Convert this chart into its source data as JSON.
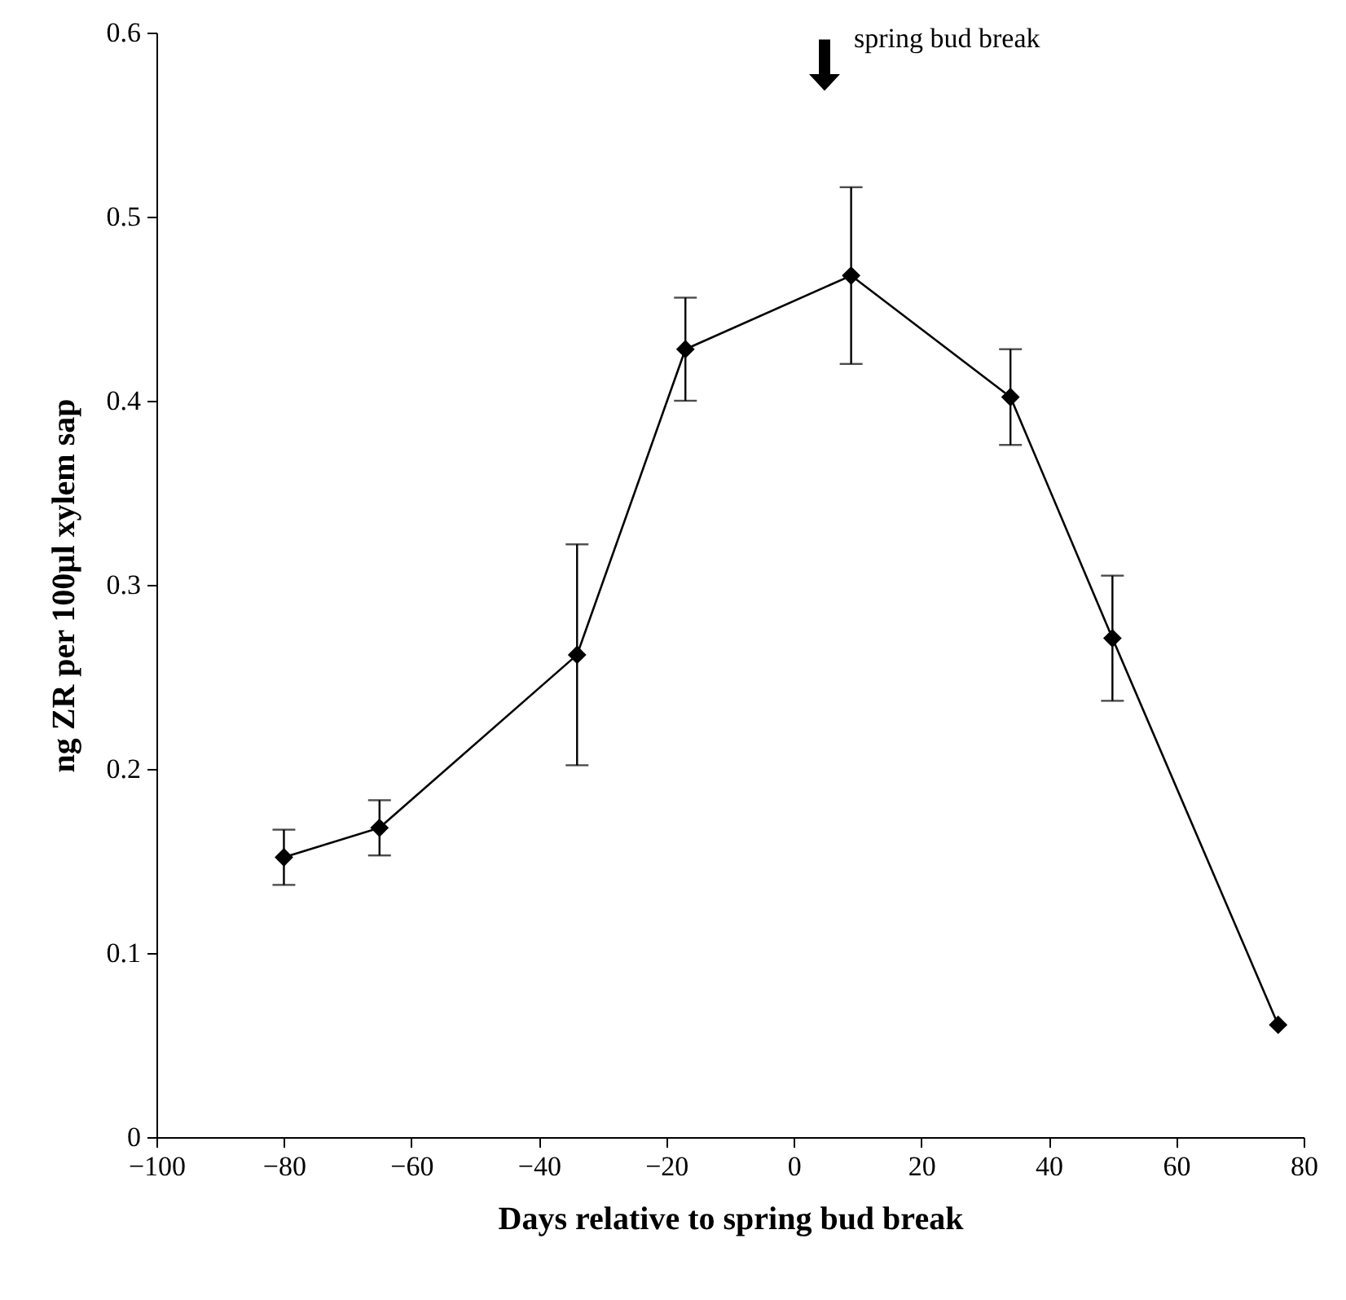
{
  "chart_data": {
    "type": "line",
    "xlabel": "Days relative to spring bud break",
    "ylabel": "ng ZR per 100µl xylem sap",
    "x": [
      -80,
      -65,
      -34,
      -17,
      9,
      34,
      50,
      76
    ],
    "series": [
      {
        "color": "#000000",
        "values": [
          0.152,
          0.168,
          0.262,
          0.428,
          0.468,
          0.402,
          0.271,
          0.061
        ],
        "errors": [
          0.015,
          0.015,
          0.06,
          0.028,
          0.048,
          0.026,
          0.034,
          null
        ]
      }
    ],
    "xlim": [
      -100,
      80
    ],
    "xticks": [
      -100,
      -80,
      -60,
      -40,
      -20,
      0,
      20,
      40,
      60,
      80
    ],
    "ylim": [
      0,
      0.6
    ],
    "yticks": [
      0,
      0.1,
      0.2,
      0.3,
      0.4,
      0.5,
      0.6
    ],
    "annotations": [
      "spring bud break"
    ],
    "marker": "diamond",
    "line_style": "solid",
    "grid": false
  }
}
